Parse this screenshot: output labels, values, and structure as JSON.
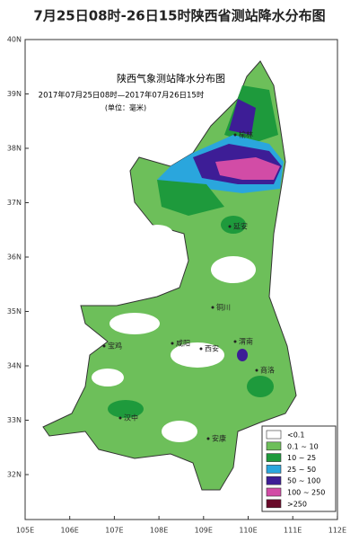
{
  "title": "7月25日08时-26日15时陕西省测站降水分布图",
  "map": {
    "title": "陕西气象测站降水分布图",
    "period": "2017年07月25日08时—2017年07月26日15时",
    "unit": "(单位：毫米)",
    "lat_labels": [
      "40N",
      "39N",
      "38N",
      "37N",
      "36N",
      "35N",
      "34N",
      "33N",
      "32N"
    ],
    "lon_labels": [
      "105E",
      "106E",
      "107E",
      "108E",
      "109E",
      "110E",
      "111E",
      "112E"
    ],
    "cities": [
      "榆林",
      "延安",
      "铜川",
      "宝鸡",
      "咸阳",
      "西安",
      "渭南",
      "汉中",
      "安康",
      "商洛"
    ]
  },
  "legend": [
    {
      "label": "<0.1",
      "color": "#ffffff"
    },
    {
      "label": "0.1 ~ 10",
      "color": "#6dbf5a"
    },
    {
      "label": "10 ~ 25",
      "color": "#1e9a3c"
    },
    {
      "label": "25 ~ 50",
      "color": "#2aa6dd"
    },
    {
      "label": "50 ~ 100",
      "color": "#3d1d96"
    },
    {
      "label": "100 ~ 250",
      "color": "#d24ca6"
    },
    {
      "label": ">250",
      "color": "#6a0a2a"
    }
  ]
}
